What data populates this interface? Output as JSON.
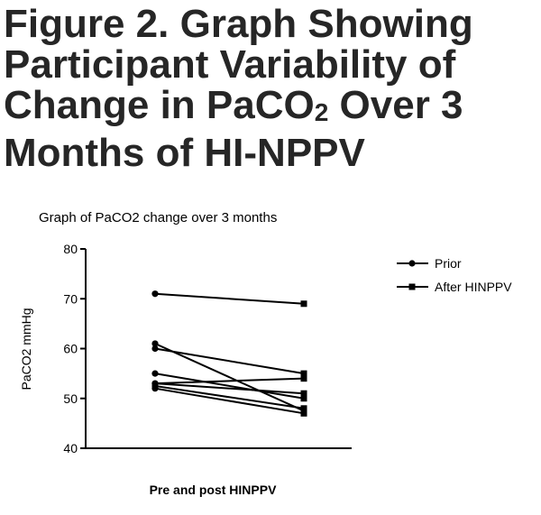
{
  "figure": {
    "title_before_sub": "Figure 2.  Graph Showing Participant Variability of Change in PaCO",
    "title_sub": "2",
    "title_after_sub": " Over 3 Months of HI-NPPV"
  },
  "chart_data": {
    "type": "line",
    "title": "Graph of PaCO2  change over  3 months",
    "xlabel": "Pre and post HINPPV",
    "ylabel": "PaCO2 mmHg",
    "ylim": [
      40,
      80
    ],
    "yticks": [
      "40",
      "50",
      "60",
      "70",
      "80"
    ],
    "x": [
      "Prior",
      "After HINPPV"
    ],
    "legend": {
      "position": "top-right",
      "entries": [
        {
          "label": "Prior",
          "marker": "circle"
        },
        {
          "label": "After HINPPV",
          "marker": "square"
        }
      ]
    },
    "grid": false,
    "participants": [
      {
        "values": [
          71,
          69
        ]
      },
      {
        "values": [
          61,
          47.5
        ]
      },
      {
        "values": [
          60,
          55
        ]
      },
      {
        "values": [
          55,
          50
        ]
      },
      {
        "values": [
          53,
          54
        ]
      },
      {
        "values": [
          53,
          51
        ]
      },
      {
        "values": [
          52.5,
          48
        ]
      },
      {
        "values": [
          52,
          47
        ]
      }
    ]
  }
}
